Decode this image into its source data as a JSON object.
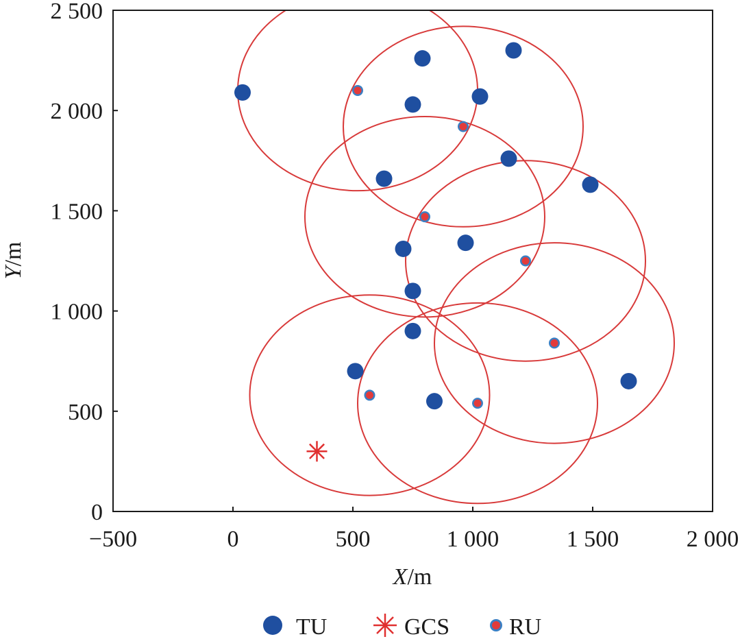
{
  "chart_data": {
    "type": "scatter",
    "xlabel": {
      "var": "X",
      "unit": "/m"
    },
    "ylabel": {
      "var": "Y",
      "unit": "/m"
    },
    "xlim": [
      -500,
      2000
    ],
    "ylim": [
      0,
      2500
    ],
    "xticks": [
      {
        "value": -500,
        "label": "−500"
      },
      {
        "value": 0,
        "label": "0"
      },
      {
        "value": 500,
        "label": "500"
      },
      {
        "value": 1000,
        "label": "1 000"
      },
      {
        "value": 1500,
        "label": "1 500"
      },
      {
        "value": 2000,
        "label": "2 000"
      }
    ],
    "yticks": [
      {
        "value": 0,
        "label": "0"
      },
      {
        "value": 500,
        "label": "500"
      },
      {
        "value": 1000,
        "label": "1 000"
      },
      {
        "value": 1500,
        "label": "1 500"
      },
      {
        "value": 2000,
        "label": "2 000"
      },
      {
        "value": 2500,
        "label": "2 500"
      }
    ],
    "grid": false,
    "legend_position": "bottom",
    "colors": {
      "tu": "#1f4fa0",
      "ru_dot": "#e23b3b",
      "ru_ring": "#3a7fc4",
      "gcs": "#e03030",
      "range": "#d83a3a",
      "axis": "#1a1a1a"
    },
    "series": [
      {
        "name": "TU",
        "marker": "filled-circle",
        "points": [
          [
            40,
            2090
          ],
          [
            790,
            2260
          ],
          [
            1170,
            2300
          ],
          [
            750,
            2030
          ],
          [
            1030,
            2070
          ],
          [
            1150,
            1760
          ],
          [
            630,
            1660
          ],
          [
            1490,
            1630
          ],
          [
            710,
            1310
          ],
          [
            970,
            1340
          ],
          [
            750,
            1100
          ],
          [
            750,
            900
          ],
          [
            510,
            700
          ],
          [
            840,
            550
          ],
          [
            1650,
            650
          ]
        ]
      },
      {
        "name": "GCS",
        "marker": "asterisk",
        "points": [
          [
            350,
            300
          ]
        ]
      },
      {
        "name": "RU",
        "marker": "ringed-dot",
        "points": [
          [
            520,
            2100
          ],
          [
            960,
            1920
          ],
          [
            800,
            1470
          ],
          [
            1220,
            1250
          ],
          [
            1340,
            840
          ],
          [
            570,
            580
          ],
          [
            1020,
            540
          ]
        ]
      }
    ],
    "coverage_circles": [
      {
        "center": [
          520,
          2100
        ],
        "radius": 500
      },
      {
        "center": [
          960,
          1920
        ],
        "radius": 500
      },
      {
        "center": [
          800,
          1470
        ],
        "radius": 500
      },
      {
        "center": [
          1220,
          1250
        ],
        "radius": 500
      },
      {
        "center": [
          1340,
          840
        ],
        "radius": 500
      },
      {
        "center": [
          570,
          580
        ],
        "radius": 500
      },
      {
        "center": [
          1020,
          540
        ],
        "radius": 500
      }
    ]
  }
}
